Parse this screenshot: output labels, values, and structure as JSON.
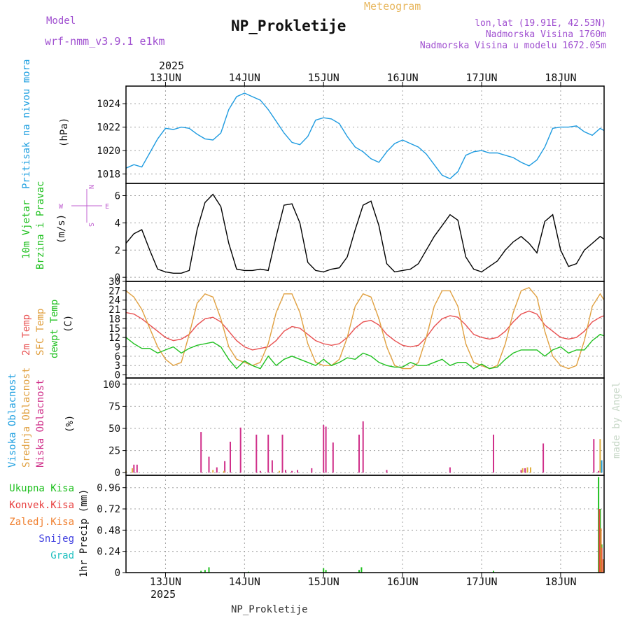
{
  "header": {
    "model_label": "Model",
    "model_name": "wrf-nmm_v3.9.1  e1km",
    "title": "NP_Prokletije",
    "product": "Meteogram",
    "location_line1": "lon,lat (19.91E, 42.53N)",
    "location_line2": "Nadmorska Visina 1760m",
    "location_line3": "Nadmorska Visina u modelu 1672.05m"
  },
  "footer": {
    "station": "NP_Prokletije"
  },
  "watermark": "made by Angel",
  "colors": {
    "pressure": "#1e9be0",
    "wind_label": "#20c020",
    "compass": "#c060d0",
    "temp2m": "#e85050",
    "sfc_temp": "#e0a040",
    "dewpt": "#20c020",
    "cloud_high": "#20a0e0",
    "cloud_mid": "#e0b040",
    "cloud_low": "#d0308a",
    "precip_total": "#20c020",
    "precip_conv": "#e84040",
    "precip_frz": "#f08030",
    "snow": "#4040e0",
    "hail": "#20c0c0"
  },
  "chart_data": {
    "type": "line",
    "time_axis": {
      "year": "2025",
      "start_day": 12.5,
      "end_day": 18.55,
      "day_labels": [
        "13JUN",
        "14JUN",
        "15JUN",
        "16JUN",
        "17JUN",
        "18JUN"
      ],
      "day_values": [
        13,
        14,
        15,
        16,
        17,
        18
      ]
    },
    "panels": [
      {
        "id": "pressure",
        "labels": [
          "Pritisak na nivou mora"
        ],
        "unit": "(hPa)",
        "ylim": [
          1017.2,
          1025.5
        ],
        "yticks": [
          1018,
          1020,
          1022,
          1024
        ],
        "series": [
          {
            "name": "Pritisak na nivou mora",
            "color": "#1e9be0",
            "x": [
              12.5,
              12.6,
              12.7,
              12.8,
              12.9,
              13.0,
              13.1,
              13.2,
              13.3,
              13.4,
              13.5,
              13.6,
              13.7,
              13.8,
              13.9,
              14.0,
              14.1,
              14.2,
              14.3,
              14.4,
              14.5,
              14.6,
              14.7,
              14.8,
              14.9,
              15.0,
              15.1,
              15.2,
              15.3,
              15.4,
              15.5,
              15.6,
              15.7,
              15.8,
              15.9,
              16.0,
              16.1,
              16.2,
              16.3,
              16.4,
              16.5,
              16.6,
              16.7,
              16.8,
              16.9,
              17.0,
              17.1,
              17.2,
              17.3,
              17.4,
              17.5,
              17.6,
              17.7,
              17.8,
              17.9,
              18.0,
              18.1,
              18.2,
              18.3,
              18.4,
              18.5,
              18.55
            ],
            "y": [
              1018.5,
              1018.8,
              1018.6,
              1019.8,
              1021.0,
              1021.9,
              1021.8,
              1022.0,
              1021.9,
              1021.4,
              1021.0,
              1020.9,
              1021.5,
              1023.5,
              1024.6,
              1024.9,
              1024.6,
              1024.3,
              1023.5,
              1022.5,
              1021.5,
              1020.7,
              1020.5,
              1021.2,
              1022.6,
              1022.8,
              1022.7,
              1022.3,
              1021.2,
              1020.3,
              1019.9,
              1019.3,
              1019.0,
              1019.9,
              1020.6,
              1020.9,
              1020.6,
              1020.3,
              1019.7,
              1018.8,
              1017.9,
              1017.6,
              1018.2,
              1019.6,
              1019.9,
              1020.0,
              1019.8,
              1019.8,
              1019.6,
              1019.4,
              1019.0,
              1018.7,
              1019.2,
              1020.3,
              1021.9,
              1022.0,
              1022.0,
              1022.1,
              1021.6,
              1021.3,
              1021.9,
              1021.7
            ]
          }
        ]
      },
      {
        "id": "wind",
        "labels": [
          "10m Vjetar",
          "Brzina i Pravac"
        ],
        "unit": "(m/s)",
        "compass": {
          "n": "N",
          "s": "S",
          "e": "E",
          "w": "W"
        },
        "ylim": [
          -0.3,
          6.9
        ],
        "yticks": [
          0,
          2,
          4,
          6
        ],
        "series": [
          {
            "name": "Brzina",
            "color": "#000000",
            "x": [
              12.5,
              12.6,
              12.7,
              12.8,
              12.9,
              13.0,
              13.1,
              13.2,
              13.3,
              13.4,
              13.5,
              13.6,
              13.7,
              13.8,
              13.9,
              14.0,
              14.1,
              14.2,
              14.3,
              14.4,
              14.5,
              14.6,
              14.7,
              14.8,
              14.9,
              15.0,
              15.1,
              15.2,
              15.3,
              15.4,
              15.5,
              15.6,
              15.7,
              15.8,
              15.9,
              16.0,
              16.1,
              16.2,
              16.3,
              16.4,
              16.5,
              16.6,
              16.7,
              16.8,
              16.9,
              17.0,
              17.1,
              17.2,
              17.3,
              17.4,
              17.5,
              17.6,
              17.7,
              17.8,
              17.9,
              18.0,
              18.1,
              18.2,
              18.3,
              18.4,
              18.5,
              18.55
            ],
            "y": [
              2.5,
              3.2,
              3.5,
              2.0,
              0.6,
              0.4,
              0.3,
              0.3,
              0.5,
              3.5,
              5.5,
              6.1,
              5.2,
              2.5,
              0.6,
              0.5,
              0.5,
              0.6,
              0.5,
              3.0,
              5.3,
              5.4,
              4.0,
              1.1,
              0.5,
              0.4,
              0.6,
              0.7,
              1.5,
              3.5,
              5.3,
              5.6,
              3.8,
              1.0,
              0.4,
              0.5,
              0.6,
              1.0,
              2.0,
              3.0,
              3.8,
              4.6,
              4.2,
              1.5,
              0.6,
              0.4,
              0.8,
              1.2,
              2.0,
              2.6,
              3.0,
              2.5,
              1.8,
              4.1,
              4.6,
              2.0,
              0.8,
              1.0,
              2.0,
              2.5,
              3.0,
              2.8
            ]
          }
        ]
      },
      {
        "id": "temperature",
        "labels": [
          "2m Temp",
          "SFC Temp",
          "dewpt Temp"
        ],
        "unit": "(C)",
        "ylim": [
          -1,
          30
        ],
        "yticks": [
          0,
          3,
          6,
          9,
          12,
          15,
          18,
          21,
          24,
          27,
          30
        ],
        "series": [
          {
            "name": "2m Temp",
            "color": "#e85050",
            "x": [
              12.5,
              12.6,
              12.7,
              12.8,
              12.9,
              13.0,
              13.1,
              13.2,
              13.3,
              13.4,
              13.5,
              13.6,
              13.7,
              13.8,
              13.9,
              14.0,
              14.1,
              14.2,
              14.3,
              14.4,
              14.5,
              14.6,
              14.7,
              14.8,
              14.9,
              15.0,
              15.1,
              15.2,
              15.3,
              15.4,
              15.5,
              15.6,
              15.7,
              15.8,
              15.9,
              16.0,
              16.1,
              16.2,
              16.3,
              16.4,
              16.5,
              16.6,
              16.7,
              16.8,
              16.9,
              17.0,
              17.1,
              17.2,
              17.3,
              17.4,
              17.5,
              17.6,
              17.7,
              17.8,
              17.9,
              18.0,
              18.1,
              18.2,
              18.3,
              18.4,
              18.5,
              18.55
            ],
            "y": [
              20,
              19.5,
              18,
              16,
              14,
              12,
              11,
              11.5,
              13,
              16,
              18,
              18.5,
              17,
              14,
              11,
              9,
              8,
              8.5,
              9,
              11,
              14,
              15.5,
              15,
              13,
              11,
              10,
              9.5,
              10,
              12,
              15,
              17,
              17.5,
              16,
              13,
              11,
              9.5,
              9,
              9.5,
              12,
              15.5,
              18,
              19,
              18.5,
              16,
              13,
              12,
              11.5,
              12,
              14,
              17,
              19.5,
              20.5,
              19.5,
              16,
              14,
              12,
              11.5,
              12,
              14,
              17,
              18.5,
              19
            ]
          },
          {
            "name": "SFC Temp",
            "color": "#e0a040",
            "x": [
              12.5,
              12.6,
              12.7,
              12.8,
              12.9,
              13.0,
              13.1,
              13.2,
              13.3,
              13.4,
              13.5,
              13.6,
              13.7,
              13.8,
              13.9,
              14.0,
              14.1,
              14.2,
              14.3,
              14.4,
              14.5,
              14.6,
              14.7,
              14.8,
              14.9,
              15.0,
              15.1,
              15.2,
              15.3,
              15.4,
              15.5,
              15.6,
              15.7,
              15.8,
              15.9,
              16.0,
              16.1,
              16.2,
              16.3,
              16.4,
              16.5,
              16.6,
              16.7,
              16.8,
              16.9,
              17.0,
              17.1,
              17.2,
              17.3,
              17.4,
              17.5,
              17.6,
              17.7,
              17.8,
              17.9,
              18.0,
              18.1,
              18.2,
              18.3,
              18.4,
              18.5,
              18.55
            ],
            "y": [
              27,
              25,
              21,
              15,
              9,
              5,
              3,
              4,
              13,
              23,
              26,
              25,
              18,
              9,
              5,
              4,
              3,
              4,
              10,
              20,
              26,
              26,
              20,
              10,
              4,
              3,
              3,
              5,
              12,
              22,
              26,
              25,
              18,
              9,
              3,
              2,
              2,
              4,
              12,
              22,
              27,
              27,
              22,
              10,
              4,
              3,
              2,
              3,
              10,
              20,
              27,
              28,
              25,
              14,
              6,
              3,
              2,
              3,
              11,
              22,
              26,
              24
            ]
          },
          {
            "name": "dewpt Temp",
            "color": "#20c020",
            "x": [
              12.5,
              12.6,
              12.7,
              12.8,
              12.9,
              13.0,
              13.1,
              13.2,
              13.3,
              13.4,
              13.5,
              13.6,
              13.7,
              13.8,
              13.9,
              14.0,
              14.1,
              14.2,
              14.3,
              14.4,
              14.5,
              14.6,
              14.7,
              14.8,
              14.9,
              15.0,
              15.1,
              15.2,
              15.3,
              15.4,
              15.5,
              15.6,
              15.7,
              15.8,
              15.9,
              16.0,
              16.1,
              16.2,
              16.3,
              16.4,
              16.5,
              16.6,
              16.7,
              16.8,
              16.9,
              17.0,
              17.1,
              17.2,
              17.3,
              17.4,
              17.5,
              17.6,
              17.7,
              17.8,
              17.9,
              18.0,
              18.1,
              18.2,
              18.3,
              18.4,
              18.5,
              18.55
            ],
            "y": [
              12,
              10,
              8.5,
              8.5,
              7,
              8,
              9,
              7,
              8.5,
              9.5,
              10,
              10.5,
              9,
              5,
              2,
              4.5,
              3,
              2,
              6,
              3,
              5,
              6,
              5,
              4,
              3,
              5,
              3,
              4,
              5.5,
              5,
              7,
              6,
              4,
              3,
              2.5,
              2.5,
              4,
              3,
              3,
              4,
              5,
              3,
              4,
              4,
              2,
              3.5,
              2,
              2.5,
              5,
              7,
              8,
              8,
              8,
              6,
              8,
              9,
              7,
              8,
              8,
              11,
              13,
              12.5
            ]
          }
        ]
      },
      {
        "id": "clouds",
        "labels": [
          "Visoka Oblacnost",
          "Srednja Oblacnost",
          "Niska Oblacnost"
        ],
        "unit": "(%)",
        "ylim": [
          -3,
          107
        ],
        "yticks": [
          0,
          25,
          50,
          75,
          100
        ],
        "bars": [
          {
            "name": "Niska Oblacnost",
            "color": "#d0308a",
            "x": [
              12.6,
              12.64,
              13.45,
              13.55,
              13.65,
              13.75,
              13.82,
              13.95,
              14.15,
              14.2,
              14.3,
              14.35,
              14.48,
              14.52,
              14.6,
              14.67,
              14.85,
              15.0,
              15.03,
              15.12,
              15.45,
              15.5,
              15.8,
              16.6,
              17.15,
              17.5,
              17.55,
              17.78,
              18.42,
              18.48
            ],
            "y": [
              9,
              9,
              46,
              18,
              6,
              13,
              35,
              51,
              43,
              2,
              43,
              14,
              43,
              3,
              2,
              3,
              5,
              54,
              52,
              34,
              43,
              58,
              3,
              6,
              43,
              3,
              5,
              33,
              38,
              2
            ]
          },
          {
            "name": "Srednja Oblacnost",
            "color": "#e0b040",
            "x": [
              12.5,
              12.58,
              13.6,
              13.74,
              14.44,
              17.52,
              17.58,
              17.62,
              18.5
            ],
            "y": [
              2,
              5,
              3,
              2,
              2,
              5,
              6,
              6,
              38
            ]
          },
          {
            "name": "Visoka Oblacnost",
            "color": "#20a0e0",
            "x": [
              18.52
            ],
            "y": [
              14
            ]
          }
        ]
      },
      {
        "id": "precip",
        "labels": [
          "Ukupna Kisa",
          "Konvek.Kisa",
          "Zaledj.Kisa",
          "Snijeg",
          "Grad"
        ],
        "unit": "1hr Precip (mm)",
        "ylim": [
          0,
          1.1
        ],
        "yticks": [
          0,
          0.24,
          0.48,
          0.72,
          0.96
        ],
        "bars": [
          {
            "name": "Ukupna Kisa",
            "color": "#20c020",
            "x": [
              13.45,
              13.5,
              13.55,
              14.05,
              15.0,
              15.03,
              15.45,
              15.48,
              17.15,
              18.48,
              18.5,
              18.52
            ],
            "y": [
              0.02,
              0.03,
              0.06,
              0.01,
              0.05,
              0.03,
              0.03,
              0.06,
              0.02,
              1.08,
              0.72,
              0.32
            ]
          },
          {
            "name": "Konvek.Kisa",
            "color": "#e84040",
            "x": [
              18.49,
              18.52
            ],
            "y": [
              0.72,
              0.28
            ]
          },
          {
            "name": "Zaledj.Kisa",
            "color": "#f08030",
            "x": [
              18.51,
              18.54
            ],
            "y": [
              0.5,
              0.15
            ]
          }
        ]
      }
    ]
  }
}
